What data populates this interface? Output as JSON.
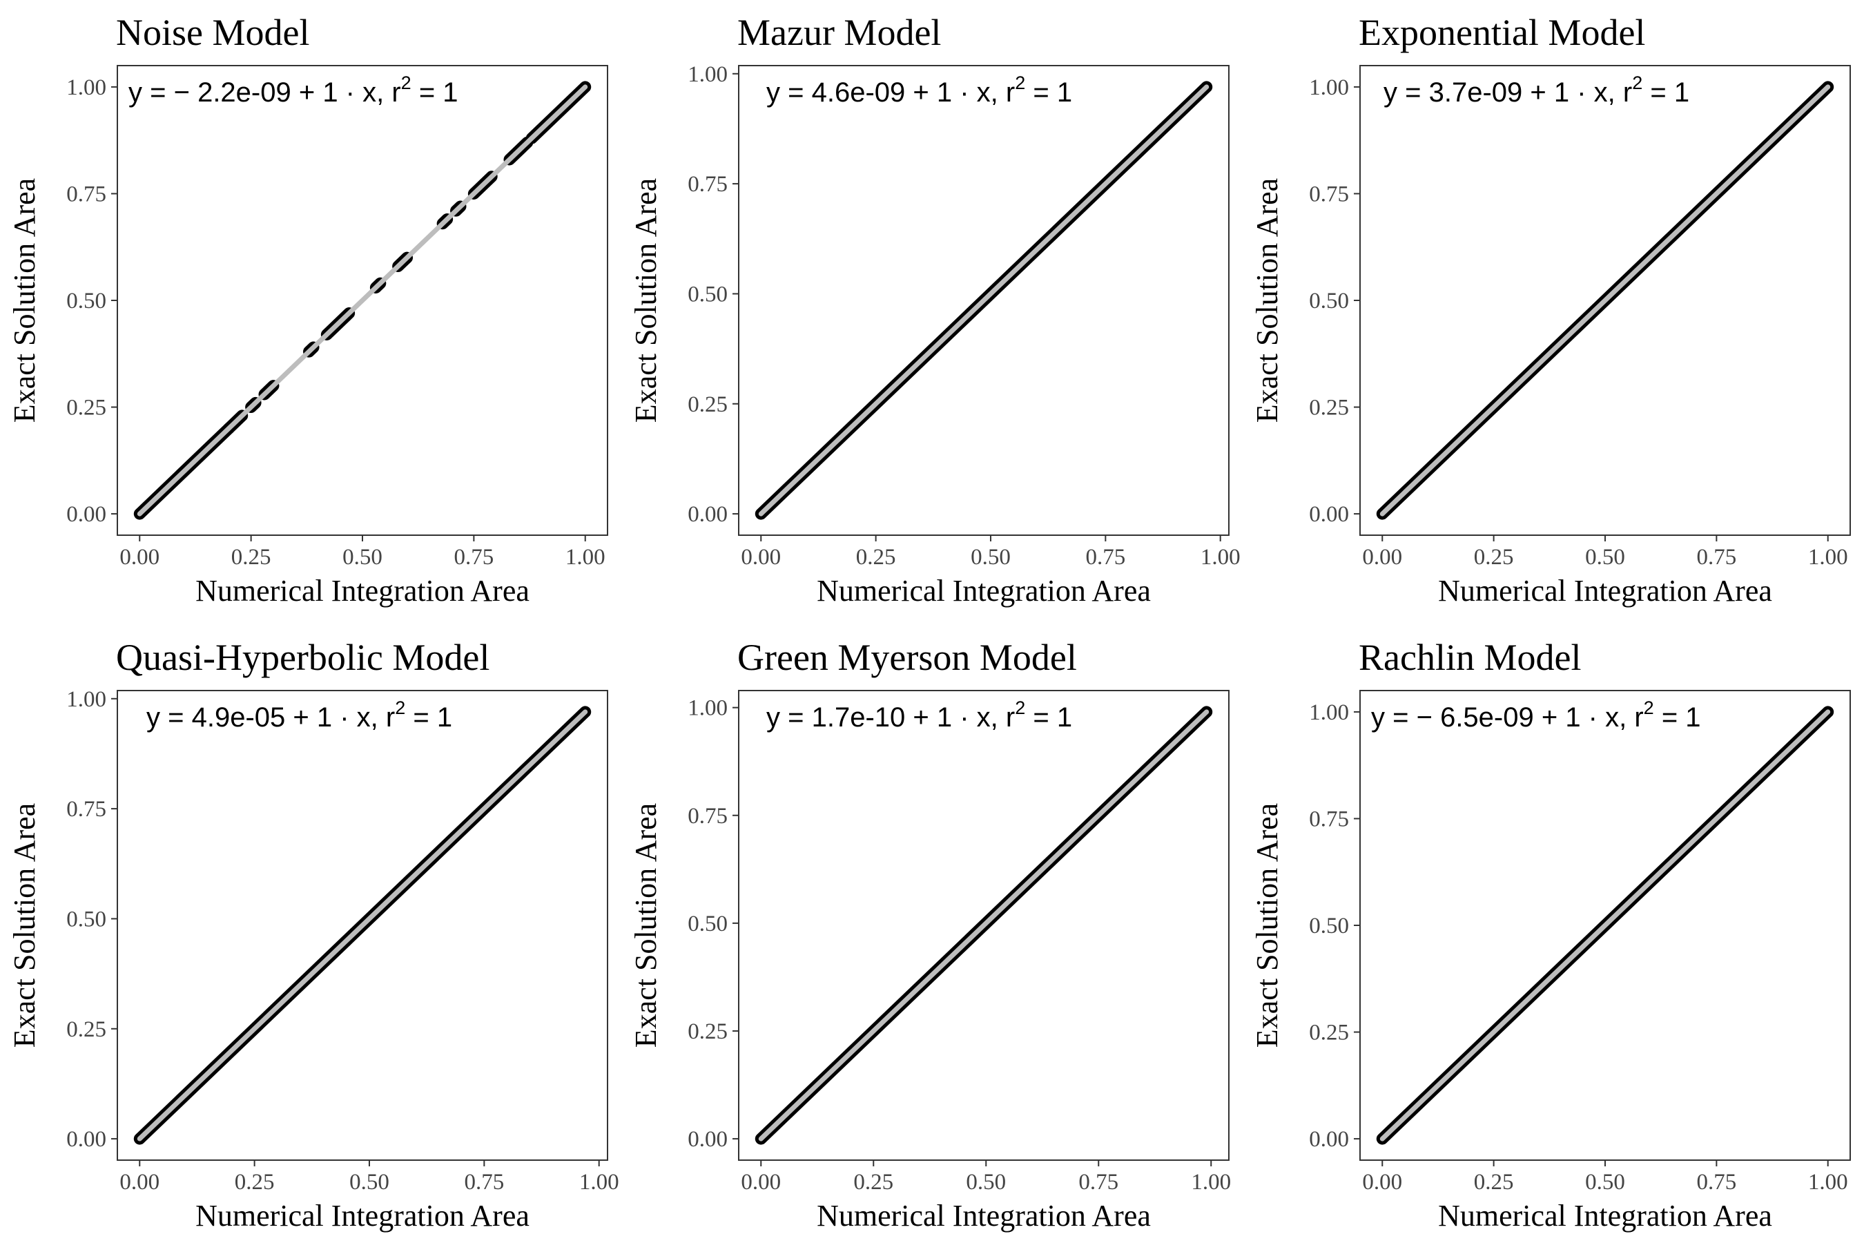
{
  "figure": {
    "panel_order": [
      "noise",
      "mazur",
      "exponential",
      "quasi_hyperbolic",
      "green_myerson",
      "rachlin"
    ]
  },
  "chart_data": [
    {
      "id": "noise",
      "type": "scatter",
      "title": "Noise Model",
      "xlabel": "Numerical Integration Area",
      "ylabel": "Exact Solution Area",
      "xlim": [
        0,
        1
      ],
      "ylim": [
        0,
        1
      ],
      "xticks": [
        "0.00",
        "0.25",
        "0.50",
        "0.75",
        "1.00"
      ],
      "yticks": [
        "0.00",
        "0.25",
        "0.50",
        "0.75",
        "1.00"
      ],
      "grid": false,
      "equation": {
        "prefix": "y = ",
        "intercept": "− 2.2e-09",
        "slope_part": " + 1 · x,  r",
        "r2_sup": "2",
        "r2_value": " = 1"
      },
      "fit_line": {
        "intercept": -2.2e-09,
        "slope": 1,
        "x": [
          0,
          1
        ]
      },
      "point_segments": [
        [
          0,
          0.2
        ],
        [
          0.2,
          0.23
        ],
        [
          0.25,
          0.26
        ],
        [
          0.28,
          0.3
        ],
        [
          0.38,
          0.39
        ],
        [
          0.42,
          0.47
        ],
        [
          0.53,
          0.54
        ],
        [
          0.58,
          0.6
        ],
        [
          0.68,
          0.69
        ],
        [
          0.71,
          0.72
        ],
        [
          0.75,
          0.79
        ],
        [
          0.83,
          0.87
        ],
        [
          0.88,
          1
        ]
      ]
    },
    {
      "id": "mazur",
      "type": "scatter",
      "title": "Mazur Model",
      "xlabel": "Numerical Integration Area",
      "ylabel": "Exact Solution Area",
      "xlim": [
        0,
        0.97
      ],
      "ylim": [
        0,
        0.97
      ],
      "xticks": [
        "0.00",
        "0.25",
        "0.50",
        "0.75",
        "1.00"
      ],
      "yticks": [
        "0.00",
        "0.25",
        "0.50",
        "0.75",
        "1.00"
      ],
      "grid": false,
      "equation": {
        "prefix": "y = ",
        "intercept": "4.6e-09",
        "slope_part": " + 1 · x,  r",
        "r2_sup": "2",
        "r2_value": " = 1"
      },
      "fit_line": {
        "intercept": 4.6e-09,
        "slope": 1,
        "x": [
          0,
          0.97
        ]
      },
      "point_segments": [
        [
          0,
          0.97
        ]
      ]
    },
    {
      "id": "exponential",
      "type": "scatter",
      "title": "Exponential Model",
      "xlabel": "Numerical Integration Area",
      "ylabel": "Exact Solution Area",
      "xlim": [
        0,
        1
      ],
      "ylim": [
        0,
        1
      ],
      "xticks": [
        "0.00",
        "0.25",
        "0.50",
        "0.75",
        "1.00"
      ],
      "yticks": [
        "0.00",
        "0.25",
        "0.50",
        "0.75",
        "1.00"
      ],
      "grid": false,
      "equation": {
        "prefix": "y = ",
        "intercept": "3.7e-09",
        "slope_part": " + 1 · x,  r",
        "r2_sup": "2",
        "r2_value": " = 1"
      },
      "fit_line": {
        "intercept": 3.7e-09,
        "slope": 1,
        "x": [
          0,
          1
        ]
      },
      "point_segments": [
        [
          0,
          1
        ]
      ]
    },
    {
      "id": "quasi_hyperbolic",
      "type": "scatter",
      "title": "Quasi-Hyperbolic Model",
      "xlabel": "Numerical Integration Area",
      "ylabel": "Exact Solution Area",
      "xlim": [
        0,
        0.97
      ],
      "ylim": [
        0,
        0.97
      ],
      "xticks": [
        "0.00",
        "0.25",
        "0.50",
        "0.75",
        "1.00"
      ],
      "yticks": [
        "0.00",
        "0.25",
        "0.50",
        "0.75",
        "1.00"
      ],
      "grid": false,
      "equation": {
        "prefix": "y = ",
        "intercept": "4.9e-05",
        "slope_part": " + 1 · x,  r",
        "r2_sup": "2",
        "r2_value": " = 1"
      },
      "fit_line": {
        "intercept": 4.9e-05,
        "slope": 1,
        "x": [
          0,
          0.97
        ]
      },
      "point_segments": [
        [
          0,
          0.97
        ]
      ]
    },
    {
      "id": "green_myerson",
      "type": "scatter",
      "title": "Green Myerson Model",
      "xlabel": "Numerical Integration Area",
      "ylabel": "Exact Solution Area",
      "xlim": [
        0,
        0.99
      ],
      "ylim": [
        0,
        0.99
      ],
      "xticks": [
        "0.00",
        "0.25",
        "0.50",
        "0.75",
        "1.00"
      ],
      "yticks": [
        "0.00",
        "0.25",
        "0.50",
        "0.75",
        "1.00"
      ],
      "grid": false,
      "equation": {
        "prefix": "y = ",
        "intercept": "1.7e-10",
        "slope_part": " + 1 · x,  r",
        "r2_sup": "2",
        "r2_value": " = 1"
      },
      "fit_line": {
        "intercept": 1.7e-10,
        "slope": 1,
        "x": [
          0,
          0.99
        ]
      },
      "point_segments": [
        [
          0,
          0.99
        ]
      ]
    },
    {
      "id": "rachlin",
      "type": "scatter",
      "title": "Rachlin Model",
      "xlabel": "Numerical Integration Area",
      "ylabel": "Exact Solution Area",
      "xlim": [
        0,
        1
      ],
      "ylim": [
        0,
        1
      ],
      "xticks": [
        "0.00",
        "0.25",
        "0.50",
        "0.75",
        "1.00"
      ],
      "yticks": [
        "0.00",
        "0.25",
        "0.50",
        "0.75",
        "1.00"
      ],
      "grid": false,
      "equation": {
        "prefix": "y = ",
        "intercept": "− 6.5e-09",
        "slope_part": " + 1 · x,  r",
        "r2_sup": "2",
        "r2_value": " = 1"
      },
      "fit_line": {
        "intercept": -6.5e-09,
        "slope": 1,
        "x": [
          0,
          1
        ]
      },
      "point_segments": [
        [
          0,
          1
        ]
      ]
    }
  ],
  "colors": {
    "points": "#000000",
    "fit_line": "#bdbdbd",
    "panel_border": "#333333",
    "tick_text": "#444444"
  }
}
